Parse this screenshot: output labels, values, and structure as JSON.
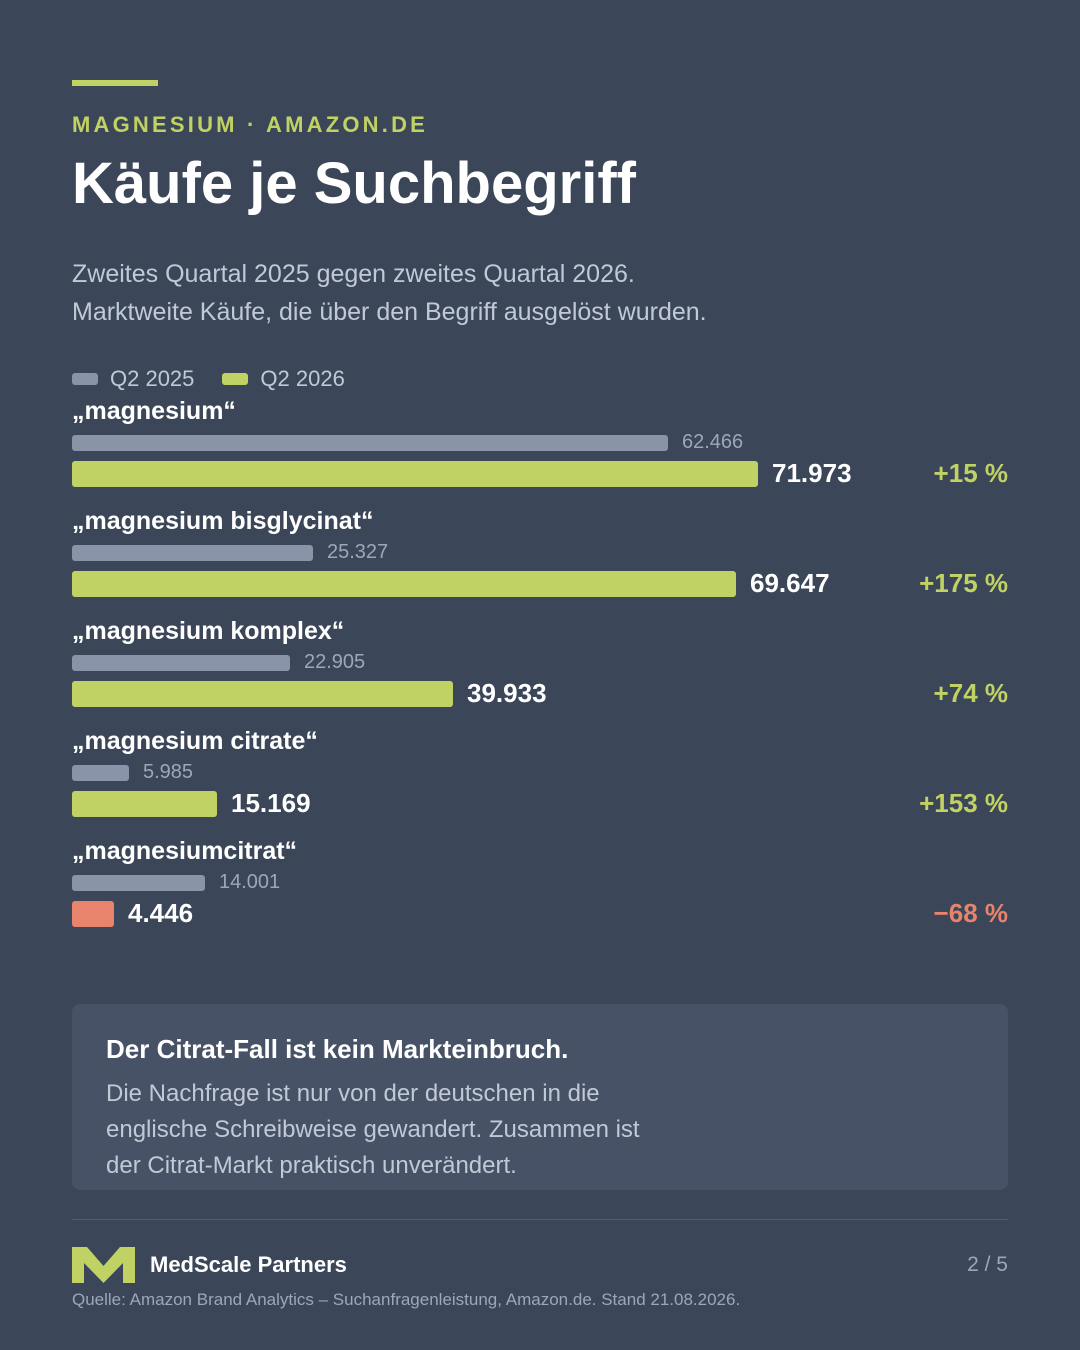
{
  "header": {
    "eyebrow": "MAGNESIUM · AMAZON.DE",
    "title": "Käufe je Suchbegriff",
    "subtitle_lines": [
      "Zweites Quartal 2025 gegen zweites Quartal 2026.",
      "Marktweite Käufe, die über den Begriff ausgelöst wurden."
    ]
  },
  "colors": {
    "background": "#3c4659",
    "accent": "#c1d264",
    "prev_bar": "#8a94a8",
    "positive": "#c1d264",
    "negative": "#e8836c"
  },
  "chart_data": {
    "type": "bar",
    "orientation": "horizontal",
    "legend": [
      "Q2 2025",
      "Q2 2026"
    ],
    "legend_placement": "top-left",
    "grid": false,
    "xlim": [
      0,
      86000
    ],
    "categories": [
      "„magnesium“",
      "„magnesium bisglycinat“",
      "„magnesium komplex“",
      "„magnesium citrate“",
      "„magnesiumcitrat“"
    ],
    "series": [
      {
        "name": "Q2 2025",
        "values": [
          62466,
          25327,
          22905,
          5985,
          14001
        ],
        "labels": [
          "62.466",
          "25.327",
          "22.905",
          "5.985",
          "14.001"
        ]
      },
      {
        "name": "Q2 2026",
        "values": [
          71973,
          69647,
          39933,
          15169,
          4446
        ],
        "labels": [
          "71.973",
          "69.647",
          "39.933",
          "15.169",
          "4.446"
        ]
      }
    ],
    "changes": [
      "+15 %",
      "+175 %",
      "+74 %",
      "+153 %",
      "−68 %"
    ],
    "change_sign": [
      "positive",
      "positive",
      "positive",
      "positive",
      "negative"
    ]
  },
  "callout": {
    "title": "Der Citrat-Fall ist kein Markteinbruch.",
    "body_lines": [
      "Die Nachfrage ist nur von der deutschen in die",
      "englische Schreibweise gewandert. Zusammen ist",
      "der Citrat-Markt praktisch unverändert."
    ]
  },
  "footer": {
    "brand": "MedScale Partners",
    "page": "2 / 5",
    "source": "Quelle: Amazon Brand Analytics – Suchanfragenleistung, Amazon.de. Stand 21.08.2026.",
    "logo_icon": "medscale-logo-icon"
  }
}
